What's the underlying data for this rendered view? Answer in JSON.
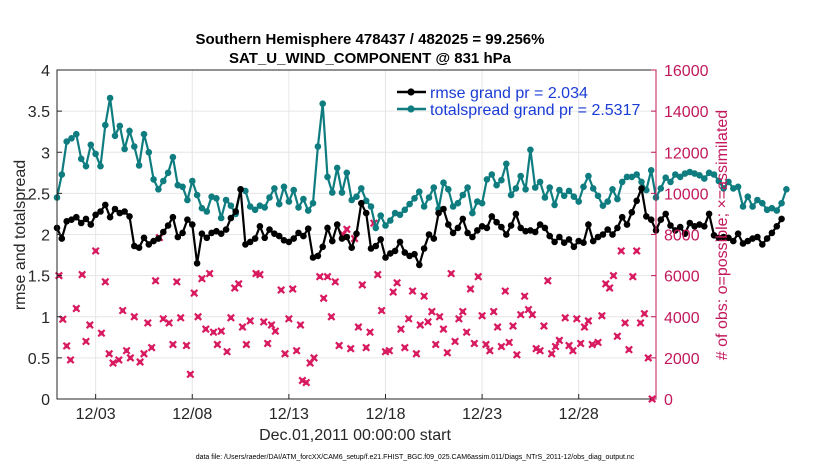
{
  "chart_data": {
    "type": "line",
    "title_line1": "Southern Hemisphere 478437 / 482025 = 99.256%",
    "title_line2": "SAT_U_WIND_COMPONENT @ 831 hPa",
    "xlabel": "Dec.01,2011 00:00:00 start",
    "ylabel": "rmse and totalspread",
    "ylabel_right": "# of obs: o=possible; ×=assimilated",
    "xlim": [
      1.0,
      32.0
    ],
    "ylim": [
      0,
      4
    ],
    "ylim_right": [
      0,
      16000
    ],
    "x_ticks": [
      3,
      8,
      13,
      18,
      23,
      28
    ],
    "x_tick_labels": [
      "12/03",
      "12/08",
      "12/13",
      "12/18",
      "12/23",
      "12/28"
    ],
    "y_ticks": [
      0,
      0.5,
      1,
      1.5,
      2,
      2.5,
      3,
      3.5,
      4
    ],
    "y_tick_labels": [
      "0",
      "0.5",
      "1",
      "1.5",
      "2",
      "2.5",
      "3",
      "3.5",
      "4"
    ],
    "y_right_ticks": [
      0,
      2000,
      4000,
      6000,
      8000,
      10000,
      12000,
      14000,
      16000
    ],
    "y_right_tick_labels": [
      "0",
      "2000",
      "4000",
      "6000",
      "8000",
      "10000",
      "12000",
      "14000",
      "16000"
    ],
    "legend": [
      "rmse grand pr = 2.034",
      "totalspread grand pr = 2.5317"
    ],
    "colors": {
      "rmse": "#000000",
      "spread": "#0f7d80",
      "obs": "#d81b60",
      "right_axis": "#c2185b",
      "legend_text": "#1a3cd6"
    },
    "x_start": 1.0,
    "x_step": 0.25,
    "series": [
      {
        "name": "rmse",
        "values": [
          2.08,
          1.95,
          2.16,
          2.18,
          2.21,
          2.14,
          2.19,
          2.12,
          2.24,
          2.28,
          2.36,
          2.21,
          2.31,
          2.26,
          2.28,
          2.22,
          1.86,
          1.84,
          1.96,
          1.88,
          1.92,
          1.95,
          2.03,
          2.11,
          2.21,
          1.97,
          2.02,
          2.18,
          2.12,
          1.65,
          2.01,
          1.96,
          2.02,
          2.04,
          2.01,
          2.06,
          2.2,
          2.28,
          2.55,
          1.88,
          1.91,
          1.95,
          2.1,
          1.96,
          2.06,
          2.01,
          1.98,
          1.93,
          1.91,
          1.95,
          2.02,
          1.98,
          2.07,
          1.72,
          1.74,
          1.85,
          2.08,
          1.92,
          2.12,
          1.95,
          1.97,
          1.84,
          2.01,
          2.38,
          2.26,
          1.83,
          1.86,
          1.94,
          1.72,
          1.77,
          1.8,
          1.91,
          1.78,
          1.74,
          1.76,
          1.63,
          1.83,
          2.0,
          1.95,
          2.26,
          2.31,
          2.12,
          2.02,
          2.08,
          2.19,
          2.02,
          1.97,
          2.05,
          2.1,
          2.08,
          2.22,
          2.15,
          2.09,
          2.0,
          2.11,
          2.25,
          2.08,
          2.04,
          2.05,
          2.03,
          2.12,
          2.08,
          1.98,
          1.91,
          1.97,
          1.9,
          1.94,
          1.85,
          1.92,
          1.9,
          2.12,
          1.92,
          1.97,
          2.0,
          2.06,
          2.0,
          2.08,
          2.21,
          2.12,
          2.27,
          2.41,
          2.56,
          2.22,
          2.18,
          2.05,
          2.18,
          2.25,
          2.11,
          2.05,
          2.09,
          2.01,
          2.14,
          2.1,
          2.12,
          2.1,
          2.25,
          1.99,
          1.96,
          1.97,
          1.96,
          1.92,
          2.01,
          1.89,
          1.92,
          1.95,
          1.97,
          1.88,
          1.95,
          2.02,
          2.1,
          2.19
        ]
      },
      {
        "name": "totalspread",
        "values": [
          2.45,
          2.73,
          3.13,
          3.17,
          3.22,
          2.92,
          2.83,
          3.09,
          2.98,
          2.83,
          3.33,
          3.66,
          3.2,
          3.32,
          3.04,
          3.26,
          3.07,
          2.84,
          3.22,
          3.0,
          2.67,
          2.55,
          2.65,
          2.75,
          2.94,
          2.6,
          2.58,
          2.42,
          2.65,
          2.48,
          2.32,
          2.28,
          2.46,
          2.44,
          2.2,
          2.42,
          2.35,
          2.25,
          2.55,
          2.53,
          2.34,
          2.3,
          2.35,
          2.33,
          2.45,
          2.56,
          2.37,
          2.58,
          2.4,
          2.54,
          2.33,
          2.43,
          2.29,
          2.38,
          3.07,
          3.59,
          2.7,
          2.51,
          2.81,
          2.51,
          2.75,
          2.42,
          2.46,
          2.56,
          2.41,
          2.34,
          2.08,
          2.23,
          2.11,
          2.17,
          2.26,
          2.24,
          2.3,
          2.37,
          2.44,
          2.52,
          2.34,
          2.45,
          2.57,
          2.31,
          2.63,
          2.55,
          2.34,
          2.38,
          2.48,
          2.57,
          2.26,
          2.4,
          2.38,
          2.67,
          2.73,
          2.6,
          2.66,
          2.86,
          2.48,
          2.56,
          2.71,
          2.55,
          3.03,
          2.57,
          2.64,
          2.45,
          2.57,
          2.36,
          2.54,
          2.47,
          2.53,
          2.46,
          2.4,
          2.58,
          2.71,
          2.56,
          2.47,
          2.35,
          2.4,
          2.55,
          2.43,
          2.64,
          2.7,
          2.7,
          2.73,
          2.64,
          2.54,
          2.78,
          2.45,
          2.56,
          2.69,
          2.64,
          2.73,
          2.7,
          2.74,
          2.76,
          2.74,
          2.72,
          2.68,
          2.75,
          2.73,
          2.65,
          2.56,
          2.64,
          2.56,
          2.58,
          2.34,
          2.46,
          2.34,
          2.42,
          2.38,
          2.3,
          2.32,
          2.29,
          2.38,
          2.55
        ]
      }
    ],
    "obs_series": {
      "name": "# of obs (assimilated)",
      "points": [
        [
          1.1,
          6000
        ],
        [
          1.3,
          3880
        ],
        [
          1.5,
          2580
        ],
        [
          1.7,
          1900
        ],
        [
          2.0,
          4400
        ],
        [
          2.3,
          6050
        ],
        [
          2.5,
          2800
        ],
        [
          2.7,
          3600
        ],
        [
          3.0,
          7200
        ],
        [
          3.3,
          3200
        ],
        [
          3.5,
          5700
        ],
        [
          3.7,
          2200
        ],
        [
          3.9,
          1750
        ],
        [
          4.2,
          1900
        ],
        [
          4.4,
          4300
        ],
        [
          4.6,
          2350
        ],
        [
          4.8,
          2000
        ],
        [
          5.0,
          4000
        ],
        [
          5.3,
          1800
        ],
        [
          5.5,
          2200
        ],
        [
          5.7,
          3700
        ],
        [
          5.9,
          2500
        ],
        [
          6.1,
          5750
        ],
        [
          6.3,
          7850
        ],
        [
          6.5,
          3900
        ],
        [
          6.8,
          3700
        ],
        [
          7.0,
          2650
        ],
        [
          7.2,
          5700
        ],
        [
          7.4,
          3950
        ],
        [
          7.7,
          2600
        ],
        [
          7.9,
          1200
        ],
        [
          8.1,
          5150
        ],
        [
          8.3,
          4000
        ],
        [
          8.5,
          5850
        ],
        [
          8.7,
          3400
        ],
        [
          8.9,
          6100
        ],
        [
          9.1,
          3250
        ],
        [
          9.3,
          2650
        ],
        [
          9.5,
          3300
        ],
        [
          9.8,
          2300
        ],
        [
          10.0,
          3950
        ],
        [
          10.2,
          5400
        ],
        [
          10.4,
          5600
        ],
        [
          10.6,
          3500
        ],
        [
          10.8,
          2650
        ],
        [
          11.0,
          3800
        ],
        [
          11.3,
          6100
        ],
        [
          11.5,
          6050
        ],
        [
          11.7,
          3750
        ],
        [
          11.9,
          2700
        ],
        [
          12.1,
          3600
        ],
        [
          12.3,
          3300
        ],
        [
          12.6,
          5300
        ],
        [
          12.8,
          2200
        ],
        [
          13.0,
          3900
        ],
        [
          13.2,
          5350
        ],
        [
          13.4,
          2350
        ],
        [
          13.6,
          3600
        ],
        [
          13.7,
          900
        ],
        [
          13.9,
          800
        ],
        [
          14.1,
          1750
        ],
        [
          14.3,
          2000
        ],
        [
          14.6,
          5950
        ],
        [
          14.8,
          4900
        ],
        [
          15.0,
          5950
        ],
        [
          15.2,
          4000
        ],
        [
          15.4,
          5700
        ],
        [
          15.6,
          2600
        ],
        [
          15.8,
          8000
        ],
        [
          16.0,
          8250
        ],
        [
          16.2,
          2450
        ],
        [
          16.4,
          7800
        ],
        [
          16.6,
          3500
        ],
        [
          16.8,
          5550
        ],
        [
          17.0,
          2500
        ],
        [
          17.2,
          3250
        ],
        [
          17.4,
          8550
        ],
        [
          17.6,
          6050
        ],
        [
          17.8,
          4300
        ],
        [
          18.0,
          2300
        ],
        [
          18.2,
          2350
        ],
        [
          18.4,
          5200
        ],
        [
          18.6,
          5650
        ],
        [
          18.8,
          3400
        ],
        [
          19.0,
          2500
        ],
        [
          19.2,
          3900
        ],
        [
          19.4,
          5250
        ],
        [
          19.6,
          2200
        ],
        [
          19.8,
          3600
        ],
        [
          20.0,
          5000
        ],
        [
          20.2,
          3750
        ],
        [
          20.4,
          4250
        ],
        [
          20.6,
          2650
        ],
        [
          20.8,
          4000
        ],
        [
          21.0,
          3400
        ],
        [
          21.2,
          2250
        ],
        [
          21.4,
          6100
        ],
        [
          21.6,
          2800
        ],
        [
          21.8,
          3900
        ],
        [
          22.0,
          4250
        ],
        [
          22.2,
          3250
        ],
        [
          22.4,
          5350
        ],
        [
          22.6,
          2700
        ],
        [
          22.8,
          5950
        ],
        [
          23.0,
          4050
        ],
        [
          23.2,
          2650
        ],
        [
          23.4,
          2350
        ],
        [
          23.6,
          4250
        ],
        [
          23.8,
          3500
        ],
        [
          24.0,
          2550
        ],
        [
          24.2,
          5250
        ],
        [
          24.4,
          2750
        ],
        [
          24.6,
          3550
        ],
        [
          24.8,
          2150
        ],
        [
          25.0,
          4100
        ],
        [
          25.2,
          5000
        ],
        [
          25.4,
          4350
        ],
        [
          25.6,
          4100
        ],
        [
          25.8,
          2450
        ],
        [
          26.0,
          2350
        ],
        [
          26.2,
          3550
        ],
        [
          26.4,
          5750
        ],
        [
          26.6,
          2200
        ],
        [
          26.8,
          2550
        ],
        [
          27.0,
          2850
        ],
        [
          27.3,
          3950
        ],
        [
          27.5,
          2600
        ],
        [
          27.7,
          2350
        ],
        [
          27.9,
          3900
        ],
        [
          28.1,
          2700
        ],
        [
          28.3,
          3500
        ],
        [
          28.5,
          3800
        ],
        [
          28.7,
          2650
        ],
        [
          29.0,
          2750
        ],
        [
          29.2,
          4050
        ],
        [
          29.4,
          5600
        ],
        [
          29.6,
          5400
        ],
        [
          29.8,
          6000
        ],
        [
          30.0,
          3050
        ],
        [
          30.2,
          7200
        ],
        [
          30.4,
          3700
        ],
        [
          30.6,
          2400
        ],
        [
          30.8,
          5950
        ],
        [
          31.0,
          7200
        ],
        [
          31.2,
          3700
        ],
        [
          31.4,
          4150
        ],
        [
          31.6,
          2000
        ],
        [
          31.8,
          0
        ]
      ]
    },
    "footer_text": "data file: /Users/raeder/DAI/ATM_forcXX/CAM6_setup/f.e21.FHIST_BGC.f09_025.CAM6assim.011/Diags_NTrS_2011-12/obs_diag_output.nc"
  }
}
